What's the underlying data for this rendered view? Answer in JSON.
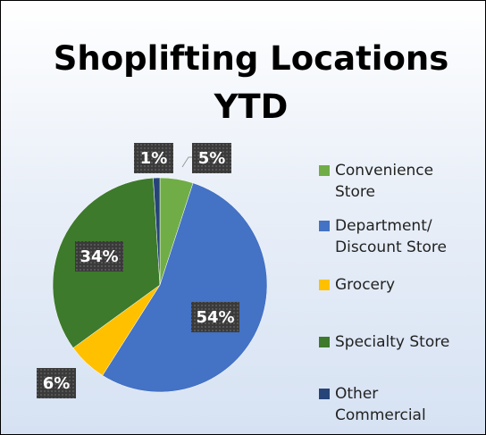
{
  "chart_data": {
    "type": "pie",
    "title": "Shoplifting Locations\nYTD",
    "categories": [
      "Convenience\nStore",
      "Department/\nDiscount Store",
      "Grocery",
      "Specialty Store",
      "Other\nCommercial"
    ],
    "values": [
      5,
      54,
      6,
      34,
      1
    ],
    "value_labels": [
      "5%",
      "54%",
      "6%",
      "34%",
      "1%"
    ],
    "colors": [
      "#70ad47",
      "#4472c4",
      "#ffc000",
      "#3d7a2c",
      "#264478"
    ],
    "legend": "right"
  }
}
